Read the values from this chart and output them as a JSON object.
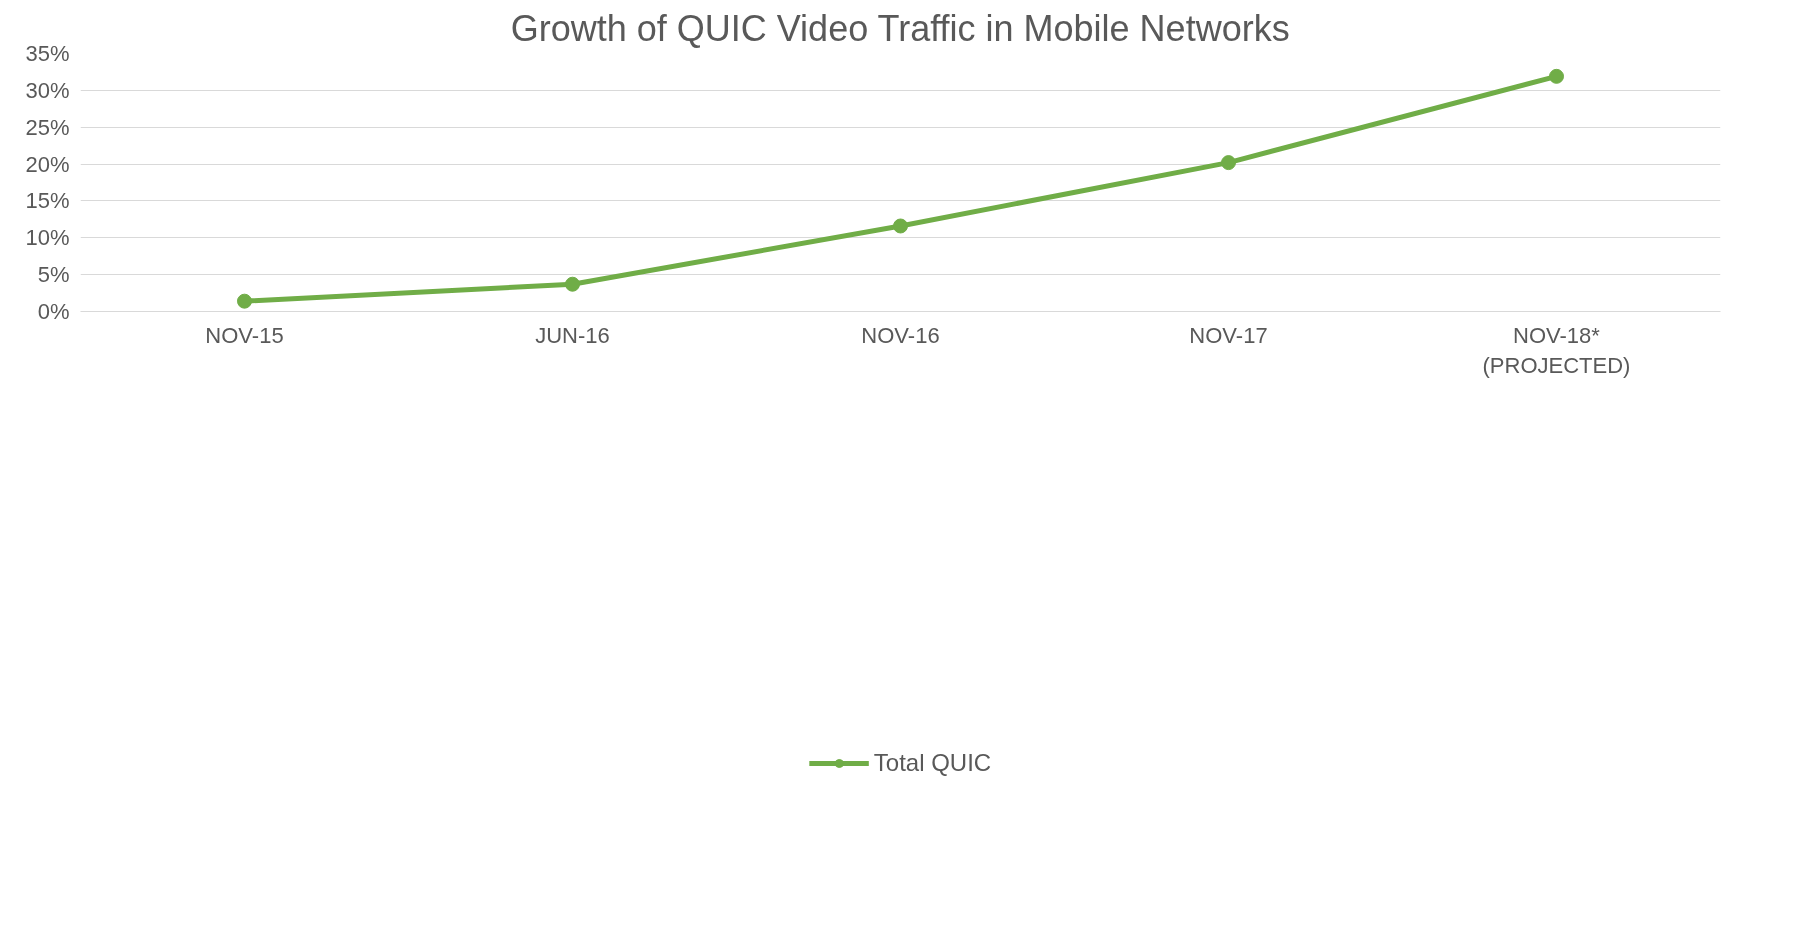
{
  "chart_data": {
    "type": "line",
    "title": "Growth of QUIC Video Traffic in Mobile Networks",
    "categories": [
      "NOV-15",
      "JUN-16",
      "NOV-16",
      "NOV-17",
      "NOV-18*\n(PROJECTED)"
    ],
    "series": [
      {
        "name": "Total QUIC",
        "color": "#70ad47",
        "values": [
          1.4,
          3.7,
          11.6,
          20.2,
          31.9
        ]
      }
    ],
    "ylim": [
      0,
      35
    ],
    "yticks": [
      {
        "value": 0,
        "label": "0%"
      },
      {
        "value": 5,
        "label": "5%"
      },
      {
        "value": 10,
        "label": "10%"
      },
      {
        "value": 15,
        "label": "15%"
      },
      {
        "value": 20,
        "label": "20%"
      },
      {
        "value": 25,
        "label": "25%"
      },
      {
        "value": 30,
        "label": "30%"
      },
      {
        "value": 35,
        "label": "35%"
      }
    ],
    "grid": "y",
    "legend": "bottom",
    "marker": "circle",
    "line_style": "solid"
  }
}
